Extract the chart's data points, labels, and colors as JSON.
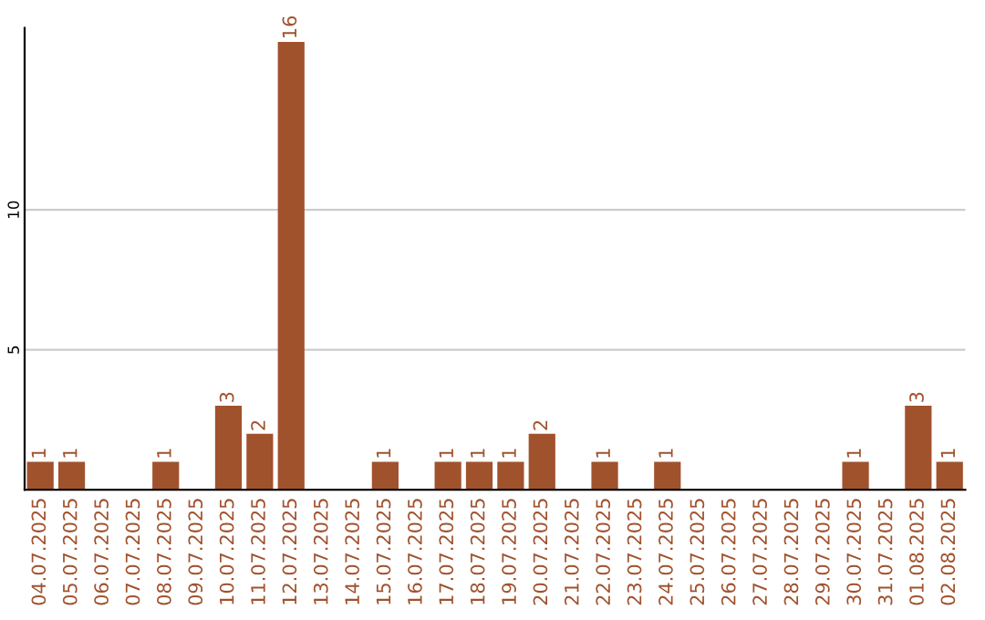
{
  "chart_data": {
    "type": "bar",
    "categories": [
      "04.07.2025",
      "05.07.2025",
      "06.07.2025",
      "07.07.2025",
      "08.07.2025",
      "09.07.2025",
      "10.07.2025",
      "11.07.2025",
      "12.07.2025",
      "13.07.2025",
      "14.07.2025",
      "15.07.2025",
      "16.07.2025",
      "17.07.2025",
      "18.07.2025",
      "19.07.2025",
      "20.07.2025",
      "21.07.2025",
      "22.07.2025",
      "23.07.2025",
      "24.07.2025",
      "25.07.2025",
      "26.07.2025",
      "27.07.2025",
      "28.07.2025",
      "29.07.2025",
      "30.07.2025",
      "31.07.2025",
      "01.08.2025",
      "02.08.2025"
    ],
    "values": [
      1,
      1,
      0,
      0,
      1,
      0,
      3,
      2,
      16,
      0,
      0,
      1,
      0,
      1,
      1,
      1,
      2,
      0,
      1,
      0,
      1,
      0,
      0,
      0,
      0,
      0,
      1,
      0,
      3,
      1
    ],
    "value_labels": [
      "1",
      "1",
      null,
      null,
      "1",
      null,
      "3",
      "2",
      "16",
      null,
      null,
      "1",
      null,
      "1",
      "1",
      "1",
      "2",
      null,
      "1",
      null,
      "1",
      null,
      null,
      null,
      null,
      null,
      "1",
      null,
      "3",
      "1"
    ],
    "color": "#a0522d",
    "ylim": [
      0,
      16.5
    ],
    "yticks": [
      5,
      10
    ],
    "grid": "y",
    "legend": false
  }
}
